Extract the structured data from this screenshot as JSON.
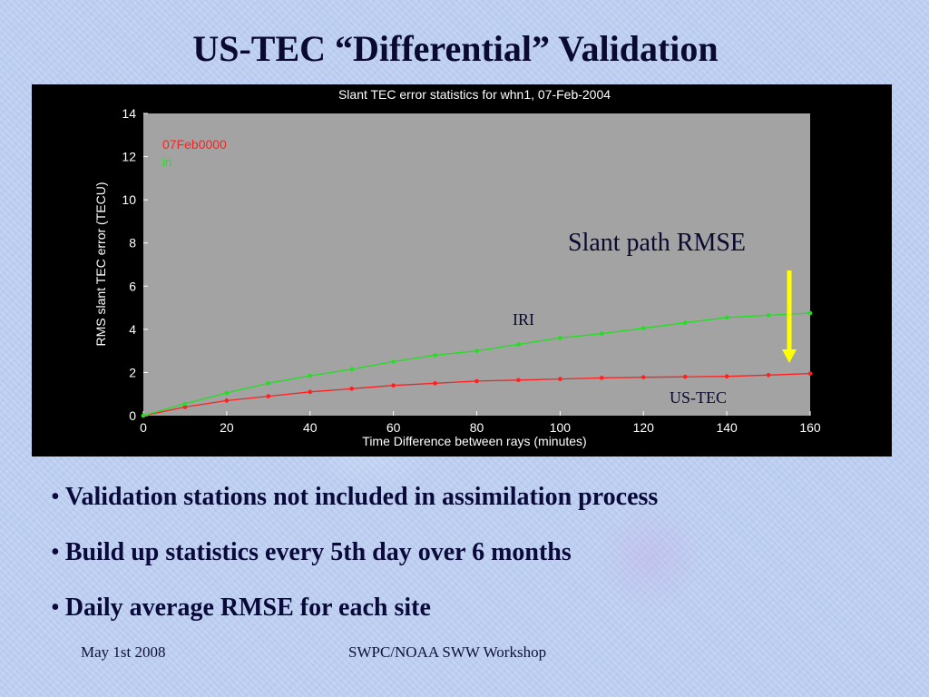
{
  "slide": {
    "title": "US-TEC “Differential” Validation",
    "bullets": [
      "Validation stations not included in assimilation process",
      "Build up statistics every 5th day over 6 months",
      "Daily average RMSE for each site"
    ],
    "footer_left": "May  1st 2008",
    "footer_center": "SWPC/NOAA SWW Workshop"
  },
  "colors": {
    "panel_bg": "#000000",
    "plot_bg": "#a3a3a3",
    "us_tec_series": "#ff2020",
    "iri_series": "#20e020",
    "arrow": "#ffff00",
    "axis_text": "#ffffff"
  },
  "chart_data": {
    "type": "line",
    "title": "Slant TEC error statistics for whn1, 07-Feb-2004",
    "xlabel": "Time Difference between rays (minutes)",
    "ylabel": "RMS slant TEC error (TECU)",
    "xlim": [
      0,
      160
    ],
    "ylim": [
      0,
      14
    ],
    "x_ticks": [
      0,
      20,
      40,
      60,
      80,
      100,
      120,
      140,
      160
    ],
    "y_ticks": [
      0,
      2,
      4,
      6,
      8,
      10,
      12,
      14
    ],
    "legend": [
      "07Feb0000",
      "iri"
    ],
    "grid": false,
    "x": [
      0,
      10,
      20,
      30,
      40,
      50,
      60,
      70,
      80,
      90,
      100,
      110,
      120,
      130,
      140,
      150,
      160
    ],
    "series": [
      {
        "name": "07Feb0000",
        "values": [
          0.0,
          0.4,
          0.7,
          0.9,
          1.1,
          1.25,
          1.4,
          1.5,
          1.6,
          1.65,
          1.7,
          1.75,
          1.78,
          1.8,
          1.82,
          1.88,
          1.95
        ]
      },
      {
        "name": "iri",
        "values": [
          0.0,
          0.55,
          1.05,
          1.5,
          1.85,
          2.15,
          2.5,
          2.8,
          3.0,
          3.3,
          3.6,
          3.8,
          4.05,
          4.3,
          4.55,
          4.65,
          4.75
        ]
      }
    ],
    "annotations": [
      "Slant path RMSE",
      "IRI",
      "US-TEC"
    ]
  }
}
